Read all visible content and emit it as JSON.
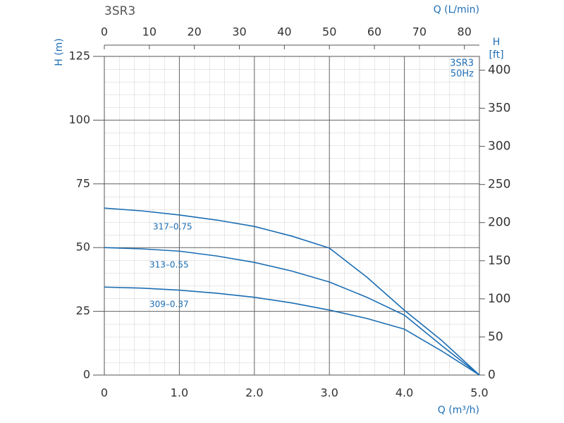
{
  "chart_data": {
    "type": "line",
    "title": "3SR3",
    "x_label": "Q (m³/h)",
    "y_label": "H (m)",
    "x2_label": "Q (L/min)",
    "y2_label": [
      "H",
      "[ft]"
    ],
    "badge": [
      "3SR3",
      "50Hz"
    ],
    "x": [
      0,
      0.5,
      1,
      1.5,
      2,
      2.5,
      3,
      3.5,
      4,
      4.5,
      5
    ],
    "series": [
      {
        "name": "317–0.75",
        "color": "#1b6db3",
        "values": [
          65.5,
          64.4,
          62.8,
          60.8,
          58.3,
          54.5,
          49.8,
          38.4,
          25.4,
          13.5,
          0
        ]
      },
      {
        "name": "313–0.55",
        "color": "#1b6db3",
        "values": [
          50,
          49.5,
          48.6,
          46.7,
          44.2,
          40.8,
          36.5,
          30.5,
          23.5,
          11.5,
          0
        ]
      },
      {
        "name": "309–0.37",
        "color": "#1b6db3",
        "values": [
          34.5,
          34.1,
          33.3,
          32.1,
          30.5,
          28.3,
          25.5,
          22.2,
          18,
          9.4,
          0
        ]
      }
    ],
    "xlim": [
      0,
      5
    ],
    "xticks": [
      0,
      {
        "value": 1,
        "label": "1.0"
      },
      {
        "value": 2,
        "label": "2.0"
      },
      {
        "value": 3,
        "label": "3.0"
      },
      {
        "value": 4,
        "label": "4.0"
      },
      {
        "value": 5,
        "label": "5.0"
      }
    ],
    "ylim": [
      0,
      125
    ],
    "yticks": [
      0,
      25,
      50,
      75,
      100,
      125
    ],
    "x2lim": [
      0,
      83.33
    ],
    "x2ticks": [
      0,
      10,
      20,
      30,
      40,
      50,
      60,
      70,
      80
    ],
    "y2lim": [
      0,
      418
    ],
    "y2ticks": [
      0,
      50,
      100,
      150,
      200,
      250,
      300,
      350,
      400
    ],
    "grid": true
  }
}
